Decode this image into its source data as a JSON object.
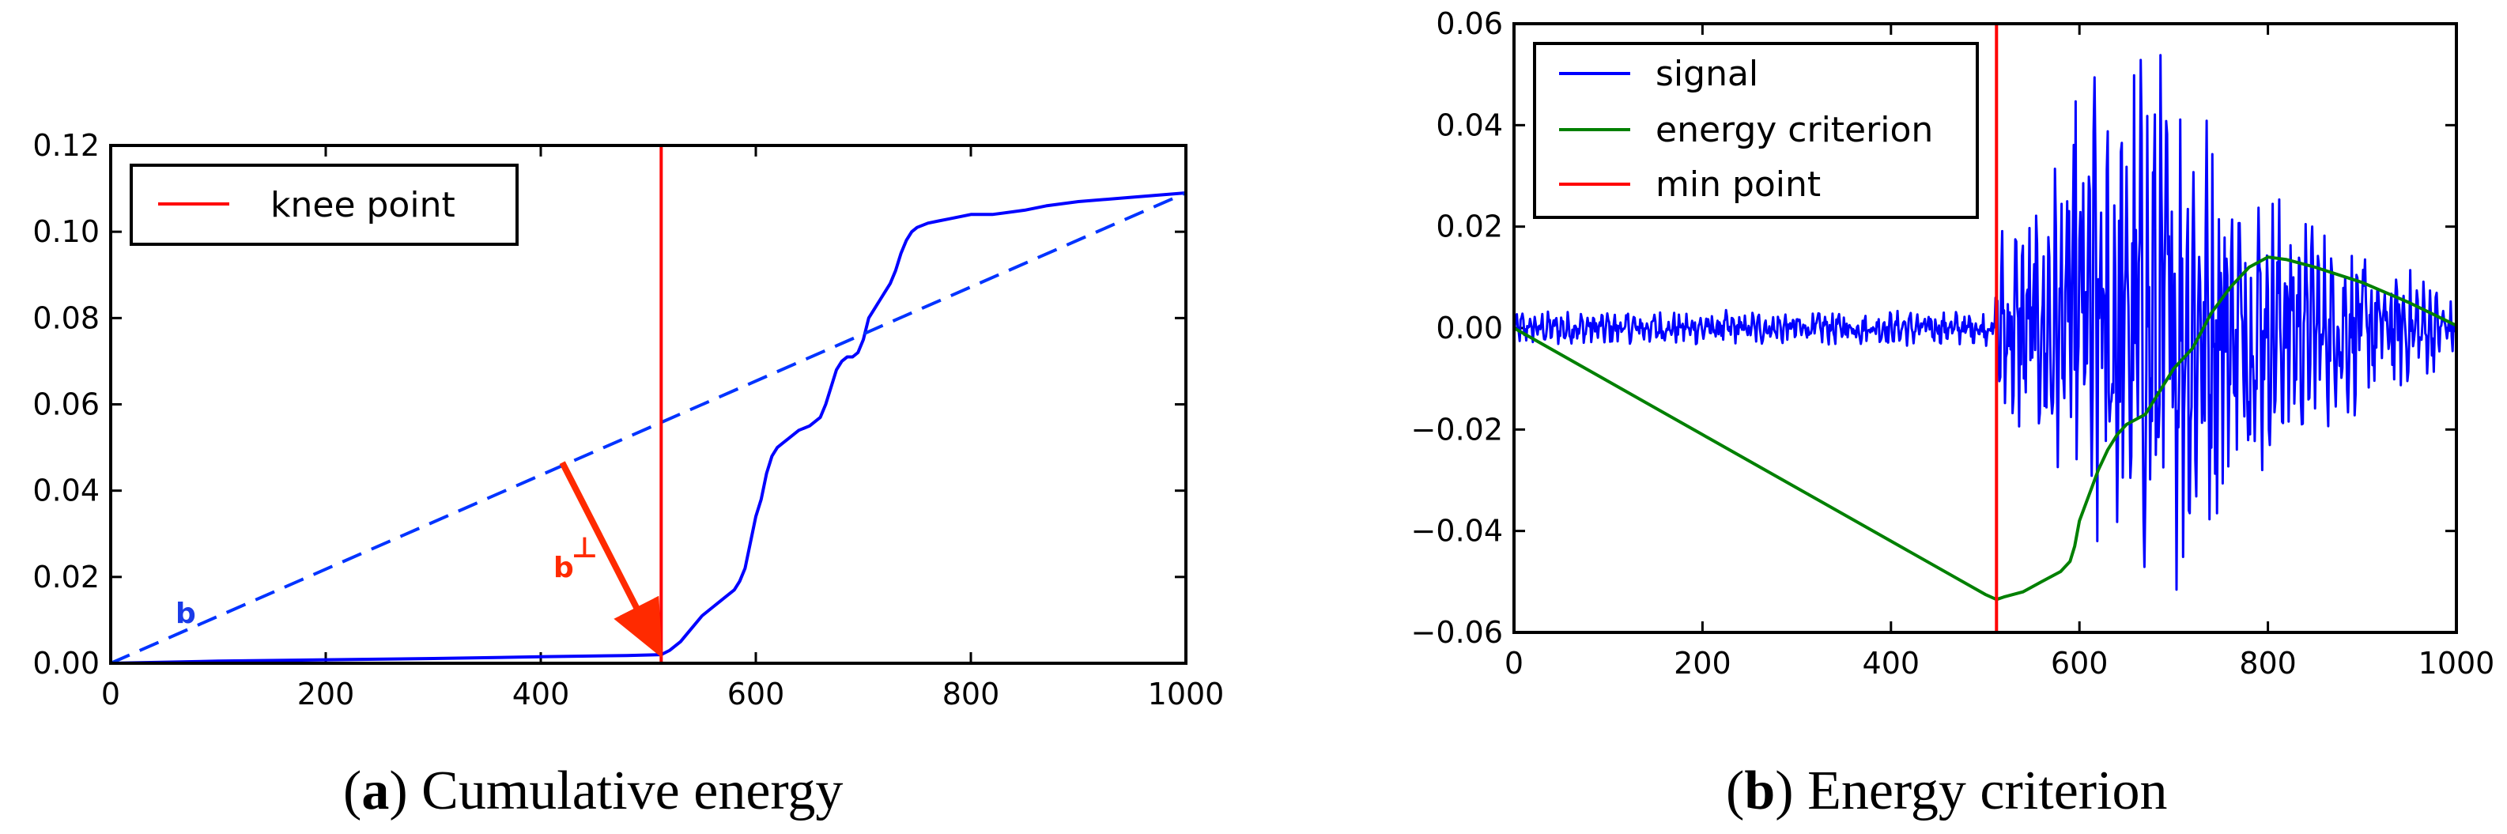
{
  "chart_data": [
    {
      "type": "line",
      "panel_label": "a",
      "caption": "Cumulative energy",
      "xlim": [
        0,
        1000
      ],
      "ylim": [
        0,
        0.12
      ],
      "xticks": [
        "0",
        "200",
        "400",
        "600",
        "800",
        "1000"
      ],
      "yticks": [
        "0.00",
        "0.02",
        "0.04",
        "0.06",
        "0.08",
        "0.10",
        "0.12"
      ],
      "legend": {
        "position": "top-left",
        "entries": [
          {
            "label": "knee point",
            "color": "#ff0000"
          }
        ]
      },
      "series": [
        {
          "name": "cumulative energy",
          "color": "#0000ff",
          "style": "solid",
          "x": [
            0,
            100,
            200,
            300,
            400,
            480,
            512,
            520,
            530,
            540,
            550,
            560,
            570,
            580,
            585,
            590,
            595,
            600,
            605,
            610,
            615,
            620,
            625,
            630,
            640,
            650,
            660,
            665,
            670,
            675,
            680,
            685,
            690,
            695,
            700,
            705,
            710,
            715,
            720,
            725,
            730,
            735,
            740,
            745,
            750,
            760,
            770,
            780,
            790,
            800,
            820,
            850,
            870,
            900,
            950,
            1000
          ],
          "values": [
            0,
            0.0005,
            0.0008,
            0.0011,
            0.0015,
            0.0018,
            0.002,
            0.003,
            0.005,
            0.008,
            0.011,
            0.013,
            0.015,
            0.017,
            0.019,
            0.022,
            0.028,
            0.034,
            0.038,
            0.044,
            0.048,
            0.05,
            0.051,
            0.052,
            0.054,
            0.055,
            0.057,
            0.06,
            0.064,
            0.068,
            0.07,
            0.071,
            0.071,
            0.072,
            0.075,
            0.08,
            0.082,
            0.084,
            0.086,
            0.088,
            0.091,
            0.095,
            0.098,
            0.1,
            0.101,
            0.102,
            0.1025,
            0.103,
            0.1035,
            0.104,
            0.104,
            0.105,
            0.106,
            0.107,
            0.108,
            0.109
          ]
        },
        {
          "name": "b",
          "color": "#0033ff",
          "style": "dashed",
          "x": [
            0,
            1000
          ],
          "values": [
            0,
            0.109
          ]
        }
      ],
      "vline": {
        "x": 512,
        "label": "knee point",
        "color": "#ff0000"
      },
      "annotations": [
        {
          "text": "b",
          "x": 75,
          "y": 0.011,
          "color": "#1a3be8"
        },
        {
          "text": "b",
          "superscript": "⊥",
          "x": 430,
          "y": 0.022,
          "color": "#ff2a00"
        }
      ],
      "arrow": {
        "from": [
          420,
          0.0465
        ],
        "to": [
          512,
          0.002
        ],
        "color": "#ff2a00"
      }
    },
    {
      "type": "line",
      "panel_label": "b",
      "caption": "Energy criterion",
      "xlim": [
        0,
        1000
      ],
      "ylim": [
        -0.06,
        0.06
      ],
      "xticks": [
        "0",
        "200",
        "400",
        "600",
        "800",
        "1000"
      ],
      "yticks": [
        "0.06",
        "0.04",
        "0.02",
        "0.00",
        "−0.02",
        "−0.04",
        "−0.06"
      ],
      "legend": {
        "position": "top-left",
        "entries": [
          {
            "label": "signal",
            "color": "#0000ff"
          },
          {
            "label": "energy criterion",
            "color": "#008000"
          },
          {
            "label": "min point",
            "color": "#ff0000"
          }
        ]
      },
      "series": [
        {
          "name": "signal",
          "color": "#0000ff",
          "style": "solid",
          "generator": "noise",
          "amplitude_envelope": [
            [
              0,
              0.003
            ],
            [
              510,
              0.003
            ],
            [
              515,
              0.018
            ],
            [
              540,
              0.02
            ],
            [
              580,
              0.03
            ],
            [
              600,
              0.048
            ],
            [
              640,
              0.045
            ],
            [
              700,
              0.047
            ],
            [
              760,
              0.03
            ],
            [
              850,
              0.018
            ],
            [
              950,
              0.01
            ],
            [
              1000,
              0.005
            ]
          ]
        },
        {
          "name": "energy criterion",
          "color": "#008000",
          "style": "solid",
          "x": [
            0,
            100,
            200,
            300,
            400,
            500,
            512,
            520,
            540,
            560,
            580,
            590,
            595,
            600,
            610,
            620,
            630,
            640,
            650,
            660,
            670,
            680,
            690,
            700,
            710,
            720,
            740,
            760,
            780,
            800,
            820,
            850,
            900,
            950,
            1000
          ],
          "values": [
            0,
            -0.0105,
            -0.021,
            -0.0315,
            -0.042,
            -0.0525,
            -0.0535,
            -0.053,
            -0.052,
            -0.05,
            -0.048,
            -0.046,
            -0.043,
            -0.038,
            -0.033,
            -0.028,
            -0.024,
            -0.021,
            -0.019,
            -0.018,
            -0.017,
            -0.014,
            -0.011,
            -0.008,
            -0.006,
            -0.004,
            0.003,
            0.008,
            0.012,
            0.014,
            0.0135,
            0.012,
            0.009,
            0.005,
            0.0005
          ]
        }
      ],
      "vline": {
        "x": 512,
        "label": "min point",
        "color": "#ff0000"
      }
    }
  ]
}
